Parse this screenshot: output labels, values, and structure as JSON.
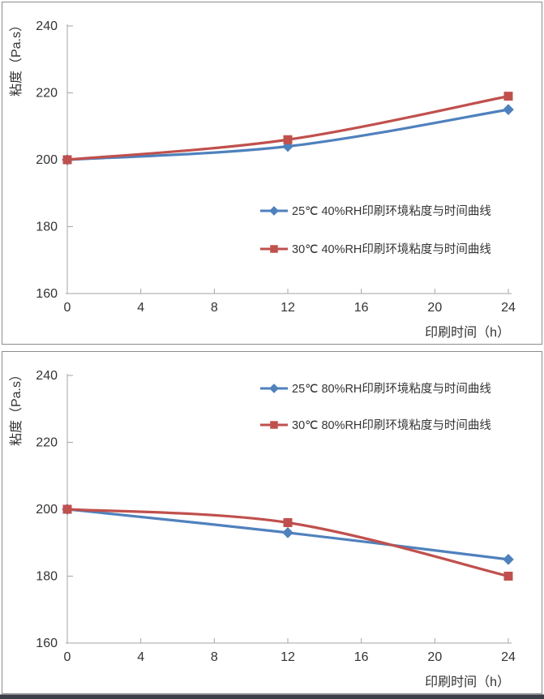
{
  "page": {
    "background_color": "#ffffff",
    "panel_border_color": "#8c8c8c",
    "bottom_bar_color": "#3a3e47",
    "axis_color": "#a6a6a6",
    "text_color": "#333333"
  },
  "chart_data": [
    {
      "type": "line",
      "title": "",
      "xlabel": "印刷时间（h）",
      "ylabel": "粘度（Pa.s）",
      "xlim": [
        0,
        24
      ],
      "ylim": [
        160,
        240
      ],
      "x_ticks": [
        0,
        4,
        8,
        12,
        16,
        20,
        24
      ],
      "y_ticks": [
        160,
        180,
        200,
        220,
        240
      ],
      "grid": false,
      "legend_position": "inside-right-middle",
      "x": [
        0,
        12,
        24
      ],
      "series": [
        {
          "name": "25℃ 40%RH印刷环境粘度与时间曲线",
          "color": "#4F81BD",
          "marker": "diamond",
          "values": [
            200,
            204,
            215
          ]
        },
        {
          "name": "30℃ 40%RH印刷环境粘度与时间曲线",
          "color": "#C0504D",
          "marker": "square",
          "values": [
            200,
            206,
            219
          ]
        }
      ]
    },
    {
      "type": "line",
      "title": "",
      "xlabel": "印刷时间（h）",
      "ylabel": "粘度（Pa.s）",
      "xlim": [
        0,
        24
      ],
      "ylim": [
        160,
        240
      ],
      "x_ticks": [
        0,
        4,
        8,
        12,
        16,
        20,
        24
      ],
      "y_ticks": [
        160,
        180,
        200,
        220,
        240
      ],
      "grid": false,
      "legend_position": "inside-top-right",
      "x": [
        0,
        12,
        24
      ],
      "series": [
        {
          "name": "25℃ 80%RH印刷环境粘度与时间曲线",
          "color": "#4F81BD",
          "marker": "diamond",
          "values": [
            200,
            193,
            185
          ]
        },
        {
          "name": "30℃ 80%RH印刷环境粘度与时间曲线",
          "color": "#C0504D",
          "marker": "square",
          "values": [
            200,
            196,
            180
          ]
        }
      ]
    }
  ]
}
